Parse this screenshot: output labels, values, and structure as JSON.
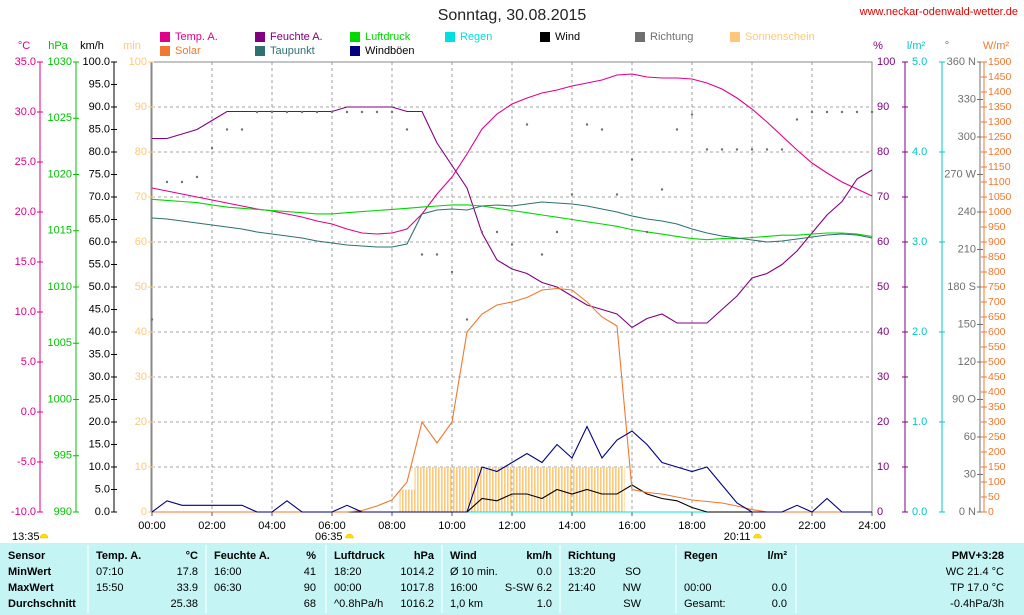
{
  "chart_data": {
    "type": "line",
    "title": "Sonntag, 30.08.2015",
    "source": "www.neckar-odenwald-wetter.de",
    "x": [
      0,
      0.5,
      1,
      1.5,
      2,
      2.5,
      3,
      3.5,
      4,
      4.5,
      5,
      5.5,
      6,
      6.5,
      7,
      7.5,
      8,
      8.5,
      9,
      9.5,
      10,
      10.5,
      11,
      11.5,
      12,
      12.5,
      13,
      13.5,
      14,
      14.5,
      15,
      15.5,
      16,
      16.5,
      17,
      17.5,
      18,
      18.5,
      19,
      19.5,
      20,
      20.5,
      21,
      21.5,
      22,
      22.5,
      23,
      23.5,
      24
    ],
    "xlim": [
      0,
      24
    ],
    "xticks": [
      {
        "value": 0,
        "label": "00:00"
      },
      {
        "value": 2,
        "label": "02:00"
      },
      {
        "value": 4,
        "label": "04:00"
      },
      {
        "value": 6,
        "label": "06:00"
      },
      {
        "value": 8,
        "label": "08:00"
      },
      {
        "value": 10,
        "label": "10:00"
      },
      {
        "value": 12,
        "label": "12:00"
      },
      {
        "value": 14,
        "label": "14:00"
      },
      {
        "value": 16,
        "label": "16:00"
      },
      {
        "value": 18,
        "label": "18:00"
      },
      {
        "value": 20,
        "label": "20:00"
      },
      {
        "value": 22,
        "label": "22:00"
      },
      {
        "value": 24,
        "label": "24:00"
      }
    ],
    "grid": true,
    "axes": [
      {
        "id": "temp",
        "label": "°C",
        "color": "#e0008c",
        "lim": [
          -10,
          35
        ],
        "ticks": [
          {
            "value": -10,
            "label": "-10.0"
          },
          {
            "value": -5,
            "label": "-5.0"
          },
          {
            "value": 0,
            "label": "0.0"
          },
          {
            "value": 5,
            "label": "5.0"
          },
          {
            "value": 10,
            "label": "10.0"
          },
          {
            "value": 15,
            "label": "15.0"
          },
          {
            "value": 20,
            "label": "20.0"
          },
          {
            "value": 25,
            "label": "25.0"
          },
          {
            "value": 30,
            "label": "30.0"
          },
          {
            "value": 35,
            "label": "35.0"
          }
        ]
      },
      {
        "id": "pressure",
        "label": "hPa",
        "color": "#00c000",
        "lim": [
          990,
          1030
        ],
        "ticks": [
          990,
          995,
          1000,
          1005,
          1010,
          1015,
          1020,
          1025,
          1030
        ]
      },
      {
        "id": "wind",
        "label": "km/h",
        "color": "#000000",
        "lim": [
          0,
          100
        ],
        "ticks": [
          {
            "value": 0,
            "label": "0.0"
          },
          {
            "value": 5,
            "label": "5.0"
          },
          {
            "value": 10,
            "label": "10.0"
          },
          {
            "value": 15,
            "label": "15.0"
          },
          {
            "value": 20,
            "label": "20.0"
          },
          {
            "value": 25,
            "label": "25.0"
          },
          {
            "value": 30,
            "label": "30.0"
          },
          {
            "value": 35,
            "label": "35.0"
          },
          {
            "value": 40,
            "label": "40.0"
          },
          {
            "value": 45,
            "label": "45.0"
          },
          {
            "value": 50,
            "label": "50.0"
          },
          {
            "value": 55,
            "label": "55.0"
          },
          {
            "value": 60,
            "label": "60.0"
          },
          {
            "value": 65,
            "label": "65.0"
          },
          {
            "value": 70,
            "label": "70.0"
          },
          {
            "value": 75,
            "label": "75.0"
          },
          {
            "value": 80,
            "label": "80.0"
          },
          {
            "value": 85,
            "label": "85.0"
          },
          {
            "value": 90,
            "label": "90.0"
          },
          {
            "value": 95,
            "label": "95.0"
          },
          {
            "value": 100,
            "label": "100.0"
          }
        ]
      },
      {
        "id": "sunshine",
        "label": "min",
        "color": "#ffc878",
        "lim": [
          0,
          100
        ],
        "ticks": [
          0,
          10,
          20,
          30,
          40,
          50,
          60,
          70,
          80,
          90,
          100
        ]
      },
      {
        "id": "humidity",
        "label": "%",
        "color": "#800080",
        "lim": [
          0,
          100
        ],
        "ticks": [
          0,
          10,
          20,
          30,
          40,
          50,
          60,
          70,
          80,
          90,
          100
        ],
        "grid": true
      },
      {
        "id": "rain",
        "label": "l/m²",
        "color": "#00c8c8",
        "lim": [
          0,
          5
        ],
        "ticks": [
          {
            "value": 0,
            "label": "0.0"
          },
          {
            "value": 1,
            "label": "1.0"
          },
          {
            "value": 2,
            "label": "2.0"
          },
          {
            "value": 3,
            "label": "3.0"
          },
          {
            "value": 4,
            "label": "4.0"
          },
          {
            "value": 5,
            "label": "5.0"
          }
        ]
      },
      {
        "id": "direction",
        "label": "°",
        "color": "#707070",
        "lim": [
          0,
          360
        ],
        "ticks": [
          {
            "value": 0,
            "label": "0 N"
          },
          30,
          60,
          {
            "value": 90,
            "label": "90 O"
          },
          120,
          150,
          {
            "value": 180,
            "label": "180 S"
          },
          210,
          240,
          {
            "value": 270,
            "label": "270 W"
          },
          300,
          330,
          {
            "value": 360,
            "label": "360 N"
          }
        ]
      },
      {
        "id": "solar",
        "label": "W/m²",
        "color": "#f07830",
        "lim": [
          0,
          1500
        ],
        "ticks": [
          0,
          50,
          100,
          150,
          200,
          250,
          300,
          350,
          400,
          450,
          500,
          550,
          600,
          650,
          700,
          750,
          800,
          850,
          900,
          950,
          1000,
          1050,
          1100,
          1150,
          1200,
          1250,
          1300,
          1350,
          1400,
          1450,
          1500
        ]
      }
    ],
    "series": [
      {
        "name": "Temp. A.",
        "color": "#e0008c",
        "axis": "temp",
        "style": "line",
        "values": [
          22.4,
          22.1,
          21.8,
          21.5,
          21.2,
          20.9,
          20.6,
          20.3,
          20.1,
          19.8,
          19.5,
          19.1,
          18.8,
          18.3,
          17.9,
          17.8,
          17.9,
          18.3,
          19.8,
          21.8,
          23.5,
          25.8,
          28.3,
          29.8,
          30.8,
          31.4,
          31.9,
          32.2,
          32.6,
          32.9,
          33.2,
          33.7,
          33.8,
          33.5,
          33.4,
          33.4,
          33.3,
          32.9,
          32.3,
          31.4,
          30.3,
          29.0,
          27.6,
          26.2,
          24.9,
          23.9,
          23.0,
          22.3,
          21.6
        ]
      },
      {
        "name": "Feuchte A.",
        "color": "#800080",
        "axis": "humidity",
        "style": "line",
        "values": [
          83,
          83,
          84,
          85,
          87,
          89,
          89,
          89,
          89,
          89,
          89,
          89,
          89,
          90,
          90,
          90,
          90,
          89,
          89,
          82,
          77,
          72,
          62,
          56,
          54,
          53,
          51,
          50,
          48,
          46,
          45,
          44,
          41,
          43,
          44,
          42,
          42,
          42,
          45,
          48,
          52,
          53,
          55,
          58,
          62,
          66,
          69,
          74,
          76
        ]
      },
      {
        "name": "Luftdruck",
        "color": "#00d800",
        "axis": "pressure",
        "style": "line",
        "values": [
          1017.8,
          1017.7,
          1017.6,
          1017.5,
          1017.3,
          1017.1,
          1017.0,
          1016.9,
          1016.8,
          1016.7,
          1016.6,
          1016.5,
          1016.5,
          1016.6,
          1016.7,
          1016.8,
          1016.9,
          1017.0,
          1017.1,
          1017.2,
          1017.3,
          1017.3,
          1017.2,
          1017.0,
          1016.8,
          1016.6,
          1016.4,
          1016.2,
          1016.0,
          1015.8,
          1015.6,
          1015.4,
          1015.1,
          1014.9,
          1014.7,
          1014.5,
          1014.3,
          1014.2,
          1014.3,
          1014.3,
          1014.4,
          1014.5,
          1014.6,
          1014.6,
          1014.7,
          1014.8,
          1014.8,
          1014.7,
          1014.5
        ]
      },
      {
        "name": "Regen",
        "color": "#00e0e0",
        "axis": "rain",
        "style": "line",
        "values": [
          0,
          0,
          0,
          0,
          0,
          0,
          0,
          0,
          0,
          0,
          0,
          0,
          0,
          0,
          0,
          0,
          0,
          0,
          0,
          0,
          0,
          0,
          0,
          0,
          0,
          0,
          0,
          0,
          0,
          0,
          0,
          0,
          0,
          0,
          0,
          0,
          0,
          0,
          0,
          0,
          0,
          0,
          0,
          0,
          0,
          0,
          0,
          0,
          0
        ]
      },
      {
        "name": "Wind",
        "color": "#000000",
        "axis": "wind",
        "style": "line",
        "values": [
          0,
          0,
          0,
          0,
          0,
          0,
          0,
          0,
          0,
          0,
          0,
          0,
          0,
          0,
          0,
          0,
          0,
          0,
          0,
          0,
          0,
          0,
          3,
          2.5,
          4,
          4,
          3,
          5,
          4,
          5,
          4,
          4,
          6,
          4,
          3,
          2.5,
          1,
          0,
          0,
          0,
          0,
          0,
          0,
          0,
          0,
          0,
          0,
          0,
          0
        ]
      },
      {
        "name": "Richtung",
        "color": "#707070",
        "axis": "direction",
        "style": "dots",
        "values": [
          154,
          264,
          264,
          268,
          291,
          306,
          306,
          320,
          320,
          320,
          320,
          320,
          320,
          320,
          320,
          320,
          320,
          306,
          206,
          206,
          192,
          154,
          224,
          224,
          214,
          310,
          206,
          224,
          254,
          310,
          306,
          254,
          282,
          224,
          258,
          306,
          318,
          290,
          290,
          290,
          290,
          290,
          290,
          314,
          320,
          320,
          320,
          320,
          320
        ]
      },
      {
        "name": "Sonnenschein",
        "color": "#ffc878",
        "axis": "sunshine",
        "style": "bars",
        "values": [
          0,
          0,
          0,
          0,
          0,
          0,
          0,
          0,
          0,
          0,
          0,
          0,
          0,
          0,
          0,
          0,
          0,
          5,
          10,
          10,
          10,
          10,
          10,
          10,
          10,
          10,
          10,
          10,
          10,
          10,
          10,
          10,
          0,
          0,
          0,
          0,
          0,
          0,
          0,
          0,
          0,
          0,
          0,
          0,
          0,
          0,
          0,
          0,
          0
        ]
      },
      {
        "name": "Solar",
        "color": "#f07830",
        "axis": "solar",
        "style": "line",
        "values": [
          0,
          0,
          0,
          0,
          0,
          0,
          0,
          0,
          0,
          0,
          0,
          0,
          0,
          0,
          5,
          20,
          40,
          100,
          300,
          230,
          300,
          600,
          660,
          690,
          700,
          715,
          740,
          745,
          740,
          700,
          650,
          620,
          75,
          65,
          60,
          50,
          40,
          35,
          30,
          20,
          8,
          0,
          0,
          0,
          0,
          0,
          0,
          0,
          0
        ]
      },
      {
        "name": "Taupunkt",
        "color": "#2f7070",
        "axis": "temp",
        "style": "line",
        "values": [
          19.4,
          19.3,
          19.1,
          18.9,
          18.7,
          18.5,
          18.3,
          18.0,
          17.8,
          17.6,
          17.4,
          17.1,
          16.9,
          16.7,
          16.6,
          16.5,
          16.5,
          16.8,
          19.8,
          20.2,
          20.3,
          20.2,
          20.6,
          20.7,
          20.6,
          20.8,
          21.0,
          20.9,
          20.8,
          20.6,
          20.3,
          20.0,
          19.6,
          19.3,
          19.1,
          18.8,
          18.3,
          17.9,
          17.6,
          17.4,
          17.2,
          17.0,
          17.1,
          17.3,
          17.5,
          17.7,
          17.8,
          17.7,
          17.4
        ]
      },
      {
        "name": "Windböen",
        "color": "#000080",
        "axis": "wind",
        "style": "line",
        "values": [
          0,
          2.5,
          1.5,
          1.5,
          1.5,
          1.5,
          1.5,
          0,
          0,
          2.5,
          0,
          0,
          0,
          1.5,
          0,
          0,
          0,
          0,
          0,
          0,
          0,
          0,
          10,
          9,
          11,
          13,
          11,
          15,
          12,
          19,
          12,
          16,
          18,
          15,
          11,
          10,
          9,
          10,
          6,
          2,
          0,
          0,
          0,
          1.5,
          0,
          3,
          0,
          0,
          0
        ]
      }
    ],
    "sun": {
      "duration": "13:35",
      "sunrise": "06:35",
      "sunset": "20:11"
    }
  },
  "table": {
    "header": [
      "Sensor",
      "Temp. A.",
      "°C",
      "Feuchte A.",
      "%",
      "Luftdruck",
      "hPa",
      "Wind",
      "km/h",
      "Richtung",
      null,
      "Regen",
      "l/m²",
      "PMV+3:28"
    ],
    "rows": [
      [
        "MinWert",
        "07:10",
        "17.8",
        "16:00",
        "41",
        "18:20",
        "1014.2",
        "Ø 10 min.",
        "0.0",
        "13:20",
        "SO",
        null,
        null,
        "WC 21.4 °C"
      ],
      [
        "MaxWert",
        "15:50",
        "33.9",
        "06:30",
        "90",
        "00:00",
        "1017.8",
        "16:00",
        "S-SW 6.2",
        "21:40",
        "NW",
        "00:00",
        "0.0",
        "TP 17.0 °C"
      ],
      [
        "Durchschnitt",
        null,
        "25.38",
        null,
        "68",
        "^0.8hPa/h",
        "1016.2",
        "1,0 km",
        "1.0",
        null,
        "SW",
        "Gesamt:",
        "0.0",
        "-0.4hPa/3h"
      ]
    ]
  }
}
